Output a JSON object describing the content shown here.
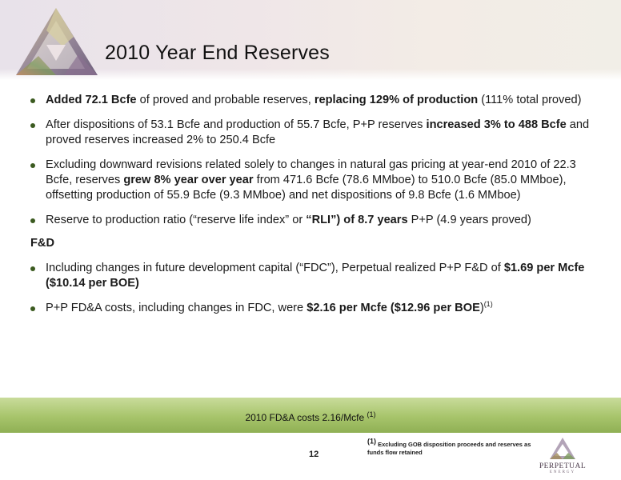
{
  "header": {
    "title": "2010 Year End Reserves"
  },
  "bullets": [
    {
      "a": "Added 72.1 Bcfe",
      "b": " of proved and probable reserves, ",
      "c": "replacing 129%  of production",
      "d": " (111% total proved)"
    },
    {
      "a": "After dispositions of 53.1 Bcfe and production of 55.7 Bcfe,  P+P reserves ",
      "b": "increased 3%  to 488 Bcfe",
      "c": " and proved reserves increased 2% to 250.4 Bcfe"
    },
    {
      "a": "Excluding downward revisions related solely to changes in natural gas pricing at year-end 2010 of 22.3 Bcfe, reserves ",
      "b": "grew 8%  year over year",
      "c": " from 471.6 Bcfe (78.6 MMboe) to 510.0 Bcfe (85.0 MMboe), offsetting production of 55.9 Bcfe (9.3 MMboe) and net dispositions of 9.8 Bcfe (1.6 MMboe)"
    },
    {
      "a": "Reserve to production ratio (“reserve life index” or ",
      "b": "“RLI”) of 8.7 years",
      "c": " P+P (4.9 years proved)"
    }
  ],
  "section_heading": "F&D",
  "fd_bullets": [
    {
      "a": "Including changes in future development capital (“FDC”), Perpetual realized P+P F&D of ",
      "b": "$1.69 per Mcfe ($10.14 per BOE)"
    },
    {
      "a": "P+P FD&A costs, including changes in FDC, were ",
      "b": "$2.16 per Mcfe ($12.96 per BOE",
      "c": ")",
      "sup": "(1)"
    }
  ],
  "band": {
    "text": "2010 FD&A costs 2.16/Mcfe ",
    "sup": "(1)"
  },
  "footer": {
    "page_number": "12",
    "footnote_mark": "(1)",
    "footnote_text": " Excluding GOB disposition proceeds and reserves as funds flow retained",
    "logo_word": "PERPETUAL",
    "logo_sub": "ENERGY"
  },
  "colors": {
    "band": "#a7c46b",
    "bullet": "#3b5a20"
  }
}
